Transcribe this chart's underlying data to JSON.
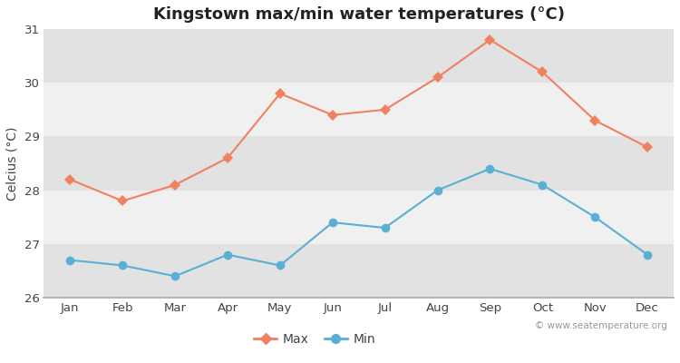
{
  "title": "Kingstown max/min water temperatures (°C)",
  "ylabel": "Celcius (°C)",
  "months": [
    "Jan",
    "Feb",
    "Mar",
    "Apr",
    "May",
    "Jun",
    "Jul",
    "Aug",
    "Sep",
    "Oct",
    "Nov",
    "Dec"
  ],
  "max_values": [
    28.2,
    27.8,
    28.1,
    28.6,
    29.8,
    29.4,
    29.5,
    30.1,
    30.8,
    30.2,
    29.3,
    28.8
  ],
  "min_values": [
    26.7,
    26.6,
    26.4,
    26.8,
    26.6,
    27.4,
    27.3,
    28.0,
    28.4,
    28.1,
    27.5,
    26.8
  ],
  "max_color": "#f08060",
  "min_color": "#5aafd4",
  "ylim": [
    26.0,
    31.0
  ],
  "yticks": [
    26,
    27,
    28,
    29,
    30,
    31
  ],
  "bg_color": "#ffffff",
  "band_light": "#f0f0f0",
  "band_dark": "#e2e2e2",
  "bottom_spine_color": "#aaaaaa",
  "watermark": "© www.seatemperature.org",
  "title_fontsize": 13,
  "axis_label_fontsize": 10,
  "tick_fontsize": 9.5,
  "legend_fontsize": 10,
  "marker": "o",
  "marker_size": 7,
  "linewidth": 1.5
}
